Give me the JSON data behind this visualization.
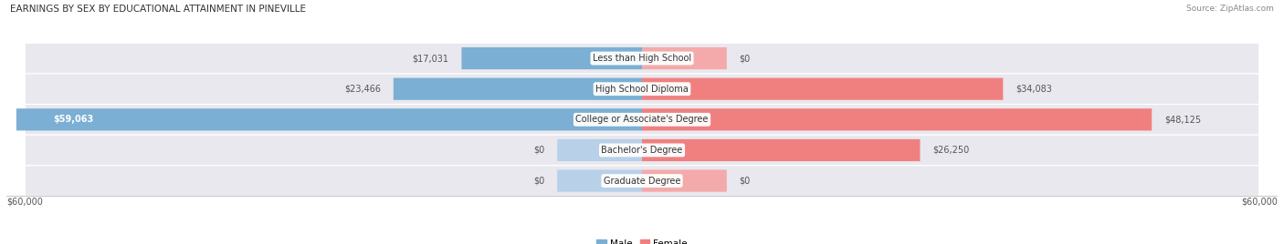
{
  "title": "EARNINGS BY SEX BY EDUCATIONAL ATTAINMENT IN PINEVILLE",
  "source": "Source: ZipAtlas.com",
  "categories": [
    "Less than High School",
    "High School Diploma",
    "College or Associate's Degree",
    "Bachelor's Degree",
    "Graduate Degree"
  ],
  "male_values": [
    17031,
    23466,
    59063,
    0,
    0
  ],
  "female_values": [
    0,
    34083,
    48125,
    26250,
    0
  ],
  "max_val": 60000,
  "male_color": "#7bafd4",
  "female_color": "#f08080",
  "male_color_light": "#b8d0e8",
  "female_color_light": "#f4aaaa",
  "axis_label_color": "#555555",
  "title_color": "#333333",
  "fig_bg": "#ffffff",
  "row_bg": "#e8e8ee"
}
